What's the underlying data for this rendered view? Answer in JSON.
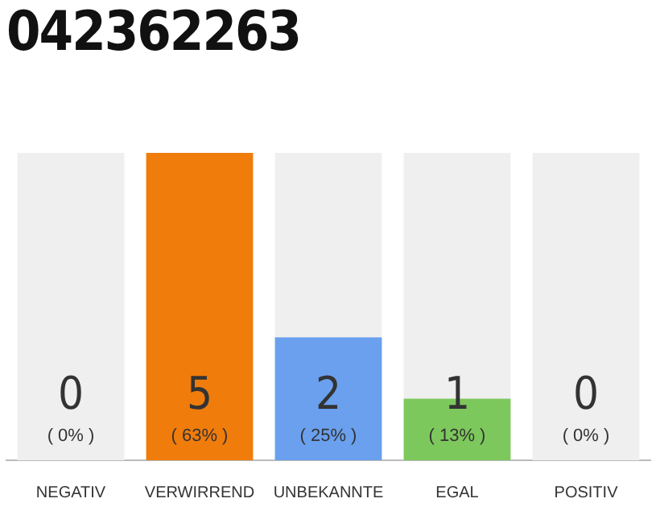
{
  "chart_data": {
    "type": "bar",
    "title": "042362263",
    "categories": [
      "NEGATIV",
      "VERWIRREND",
      "UNBEKANNTE",
      "EGAL",
      "POSITIV"
    ],
    "series": [
      {
        "color": "#efefef",
        "values": [
          5,
          null,
          5,
          5,
          5
        ]
      },
      {
        "colors": [
          "#f07c0b",
          "#f07c0b",
          "#6aa0ee",
          "#7dc85c",
          "#6aa0ee"
        ],
        "values": [
          0,
          5,
          2,
          1,
          0
        ],
        "value_labels": [
          "0 ( 0% )",
          "5 ( 63% )",
          "2 ( 25% )",
          "1 ( 13% )",
          "0 ( 0% )"
        ]
      }
    ],
    "tick_labels": "x",
    "grid": false,
    "legend": false
  }
}
